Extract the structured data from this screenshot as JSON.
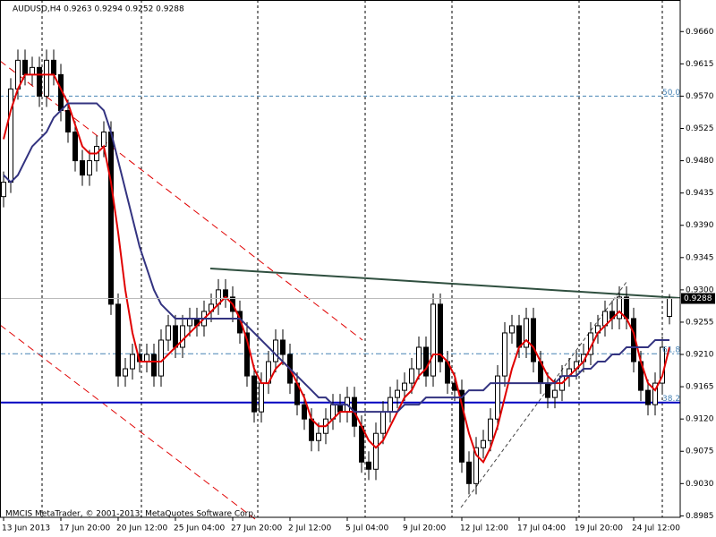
{
  "chart_data": {
    "type": "candlestick",
    "title": "AUDUSD,H4  0.9263 0.9294 0.9252 0.9288",
    "footer": "MMCIS MetaTrader, © 2001-2013, MetaQuotes Software Corp.",
    "categories": [
      "13 Jun 2013",
      null,
      null,
      null,
      null,
      null,
      null,
      null,
      "17 Jun 20:00",
      null,
      null,
      null,
      null,
      null,
      null,
      null,
      "20 Jun 12:00",
      null,
      null,
      null,
      null,
      null,
      null,
      null,
      "25 Jun 04:00",
      null,
      null,
      null,
      null,
      null,
      null,
      null,
      "27 Jun 20:00",
      null,
      null,
      null,
      null,
      null,
      null,
      null,
      "2 Jul 12:00",
      null,
      null,
      null,
      null,
      null,
      null,
      null,
      "5 Jul 04:00",
      null,
      null,
      null,
      null,
      null,
      null,
      null,
      "9 Jul 20:00",
      null,
      null,
      null,
      null,
      null,
      null,
      null,
      "12 Jul 12:00",
      null,
      null,
      null,
      null,
      null,
      null,
      null,
      "17 Jul 04:00",
      null,
      null,
      null,
      null,
      null,
      null,
      null,
      "19 Jul 20:00",
      null,
      null,
      null,
      null,
      null,
      null,
      null,
      "24 Jul 12:00",
      null,
      null,
      null,
      null,
      null
    ],
    "open": [
      0.943,
      0.945,
      0.958,
      0.962,
      0.96,
      0.961,
      0.957,
      0.962,
      0.96,
      0.955,
      0.952,
      0.948,
      0.946,
      0.948,
      0.95,
      0.952,
      0.928,
      0.918,
      0.919,
      0.921,
      0.92,
      0.921,
      0.918,
      0.923,
      0.925,
      0.922,
      0.925,
      0.926,
      0.925,
      0.927,
      0.928,
      0.93,
      0.929,
      0.927,
      0.924,
      0.918,
      0.913,
      0.917,
      0.92,
      0.923,
      0.921,
      0.917,
      0.914,
      0.912,
      0.909,
      0.91,
      0.912,
      0.914,
      0.913,
      0.915,
      0.911,
      0.906,
      0.905,
      0.91,
      0.913,
      0.915,
      0.916,
      0.917,
      0.919,
      0.922,
      0.918,
      0.928,
      0.92,
      0.917,
      0.916,
      0.906,
      0.903,
      0.908,
      0.909,
      0.912,
      0.918,
      0.924,
      0.925,
      0.922,
      0.926,
      0.92,
      0.917,
      0.915,
      0.916,
      0.918,
      0.919,
      0.92,
      0.921,
      0.924,
      0.925,
      0.927,
      0.926,
      0.929,
      0.926,
      0.92,
      0.916,
      0.914,
      0.917,
      0.9263
    ],
    "high": [
      0.9465,
      0.9595,
      0.9635,
      0.9635,
      0.9625,
      0.9625,
      0.9635,
      0.9635,
      0.9615,
      0.9565,
      0.9535,
      0.9495,
      0.9495,
      0.9515,
      0.9535,
      0.9535,
      0.9295,
      0.9205,
      0.9225,
      0.9225,
      0.9225,
      0.9225,
      0.9245,
      0.9265,
      0.9265,
      0.9265,
      0.9275,
      0.9275,
      0.9285,
      0.9295,
      0.9315,
      0.9315,
      0.9305,
      0.9285,
      0.9255,
      0.9195,
      0.9185,
      0.9215,
      0.9245,
      0.9245,
      0.9225,
      0.9185,
      0.9155,
      0.9135,
      0.9115,
      0.9135,
      0.9155,
      0.9155,
      0.9165,
      0.9165,
      0.9125,
      0.9075,
      0.9115,
      0.9145,
      0.9165,
      0.9175,
      0.9185,
      0.9205,
      0.9235,
      0.9235,
      0.9295,
      0.9295,
      0.9215,
      0.9185,
      0.9175,
      0.9075,
      0.9095,
      0.9105,
      0.9135,
      0.9195,
      0.9255,
      0.9265,
      0.9265,
      0.9275,
      0.9275,
      0.9215,
      0.9185,
      0.9175,
      0.9195,
      0.9205,
      0.9215,
      0.9225,
      0.9255,
      0.9265,
      0.9285,
      0.9285,
      0.9305,
      0.9305,
      0.9275,
      0.9215,
      0.9175,
      0.9185,
      0.9235,
      0.9294
    ],
    "low": [
      0.9415,
      0.9435,
      0.9565,
      0.9585,
      0.9585,
      0.9555,
      0.9555,
      0.9585,
      0.9535,
      0.9505,
      0.9465,
      0.9445,
      0.9445,
      0.9465,
      0.9485,
      0.9265,
      0.9165,
      0.9165,
      0.9175,
      0.9185,
      0.9185,
      0.9165,
      0.9165,
      0.9215,
      0.9205,
      0.9205,
      0.9235,
      0.9235,
      0.9235,
      0.9255,
      0.9265,
      0.9275,
      0.9255,
      0.9225,
      0.9165,
      0.9115,
      0.9115,
      0.9155,
      0.9185,
      0.9195,
      0.9155,
      0.9125,
      0.9105,
      0.9075,
      0.9075,
      0.9085,
      0.9105,
      0.9115,
      0.9115,
      0.9095,
      0.9045,
      0.9035,
      0.9035,
      0.9085,
      0.9115,
      0.9135,
      0.9145,
      0.9155,
      0.9175,
      0.9165,
      0.9165,
      0.9185,
      0.9155,
      0.9145,
      0.9045,
      0.9015,
      0.9015,
      0.9065,
      0.9075,
      0.9105,
      0.9165,
      0.9225,
      0.9205,
      0.9205,
      0.9185,
      0.9155,
      0.9135,
      0.9135,
      0.9145,
      0.9165,
      0.9175,
      0.9185,
      0.9195,
      0.9225,
      0.9235,
      0.9245,
      0.9245,
      0.9245,
      0.9185,
      0.9145,
      0.9125,
      0.9125,
      0.9155,
      0.9252
    ],
    "close": [
      0.945,
      0.958,
      0.962,
      0.96,
      0.961,
      0.957,
      0.962,
      0.96,
      0.955,
      0.952,
      0.948,
      0.946,
      0.948,
      0.95,
      0.952,
      0.928,
      0.918,
      0.919,
      0.921,
      0.92,
      0.921,
      0.918,
      0.923,
      0.925,
      0.922,
      0.925,
      0.926,
      0.925,
      0.927,
      0.928,
      0.93,
      0.929,
      0.927,
      0.924,
      0.918,
      0.913,
      0.917,
      0.92,
      0.923,
      0.921,
      0.917,
      0.914,
      0.912,
      0.909,
      0.91,
      0.912,
      0.914,
      0.913,
      0.915,
      0.911,
      0.906,
      0.905,
      0.91,
      0.913,
      0.915,
      0.916,
      0.917,
      0.919,
      0.922,
      0.918,
      0.928,
      0.92,
      0.917,
      0.916,
      0.906,
      0.903,
      0.908,
      0.909,
      0.912,
      0.918,
      0.924,
      0.925,
      0.922,
      0.926,
      0.92,
      0.917,
      0.915,
      0.916,
      0.918,
      0.919,
      0.92,
      0.921,
      0.924,
      0.925,
      0.927,
      0.926,
      0.929,
      0.926,
      0.92,
      0.916,
      0.914,
      0.917,
      0.922,
      0.9288
    ],
    "series": [
      {
        "color": "#e00000",
        "values": [
          0.951,
          0.955,
          0.958,
          0.96,
          0.96,
          0.96,
          0.96,
          0.96,
          0.958,
          0.956,
          0.953,
          0.95,
          0.949,
          0.949,
          0.95,
          0.945,
          0.938,
          0.93,
          0.924,
          0.92,
          0.92,
          0.92,
          0.92,
          0.921,
          0.922,
          0.923,
          0.924,
          0.925,
          0.926,
          0.927,
          0.928,
          0.929,
          0.928,
          0.926,
          0.923,
          0.919,
          0.917,
          0.917,
          0.919,
          0.92,
          0.919,
          0.917,
          0.915,
          0.912,
          0.911,
          0.911,
          0.912,
          0.913,
          0.913,
          0.913,
          0.911,
          0.909,
          0.908,
          0.909,
          0.911,
          0.913,
          0.915,
          0.916,
          0.918,
          0.919,
          0.921,
          0.921,
          0.92,
          0.918,
          0.914,
          0.91,
          0.907,
          0.906,
          0.908,
          0.911,
          0.915,
          0.919,
          0.922,
          0.923,
          0.922,
          0.92,
          0.918,
          0.917,
          0.917,
          0.918,
          0.919,
          0.92,
          0.922,
          0.924,
          0.925,
          0.926,
          0.927,
          0.926,
          0.924,
          0.92,
          0.917,
          0.916,
          0.918,
          0.922
        ]
      },
      {
        "color": "#333380",
        "values": [
          0.946,
          0.945,
          0.946,
          0.948,
          0.95,
          0.951,
          0.952,
          0.954,
          0.955,
          0.956,
          0.956,
          0.956,
          0.956,
          0.956,
          0.955,
          0.952,
          0.948,
          0.944,
          0.94,
          0.936,
          0.933,
          0.93,
          0.928,
          0.927,
          0.926,
          0.926,
          0.926,
          0.926,
          0.926,
          0.926,
          0.926,
          0.926,
          0.926,
          0.926,
          0.925,
          0.924,
          0.923,
          0.922,
          0.921,
          0.92,
          0.919,
          0.918,
          0.917,
          0.916,
          0.915,
          0.915,
          0.914,
          0.914,
          0.914,
          0.913,
          0.913,
          0.913,
          0.913,
          0.913,
          0.913,
          0.913,
          0.914,
          0.914,
          0.914,
          0.915,
          0.915,
          0.915,
          0.915,
          0.915,
          0.915,
          0.916,
          0.916,
          0.916,
          0.917,
          0.917,
          0.917,
          0.917,
          0.917,
          0.917,
          0.917,
          0.917,
          0.917,
          0.917,
          0.918,
          0.918,
          0.918,
          0.919,
          0.919,
          0.92,
          0.92,
          0.921,
          0.921,
          0.922,
          0.922,
          0.922,
          0.922,
          0.923,
          0.923,
          0.923
        ]
      }
    ],
    "fibonacci": [
      {
        "label": "50.0",
        "price": 0.957
      },
      {
        "label": "61.8",
        "price": 0.9211
      },
      {
        "label": "38.2",
        "price": 0.9143
      }
    ],
    "ylim": [
      0.8983,
      0.9704
    ],
    "yticks": [
      {
        "value": 0.966,
        "label": "0.9660"
      },
      {
        "value": 0.9615,
        "label": "0.9615"
      },
      {
        "value": 0.957,
        "label": "0.9570"
      },
      {
        "value": 0.9525,
        "label": "0.9525"
      },
      {
        "value": 0.948,
        "label": "0.9480"
      },
      {
        "value": 0.9435,
        "label": "0.9435"
      },
      {
        "value": 0.939,
        "label": "0.9390"
      },
      {
        "value": 0.9345,
        "label": "0.9345"
      },
      {
        "value": 0.93,
        "label": "0.9300"
      },
      {
        "value": 0.9255,
        "label": "0.9255"
      },
      {
        "value": 0.921,
        "label": "0.9210"
      },
      {
        "value": 0.9165,
        "label": "0.9165"
      },
      {
        "value": 0.912,
        "label": "0.9120"
      },
      {
        "value": 0.9075,
        "label": "0.9075"
      },
      {
        "value": 0.903,
        "label": "0.9030"
      },
      {
        "value": 0.8985,
        "label": "0.8985"
      }
    ]
  }
}
